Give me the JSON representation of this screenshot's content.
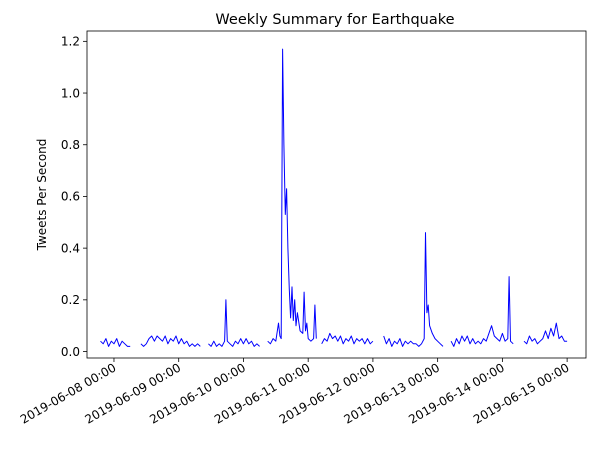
{
  "chart_data": {
    "type": "line",
    "title": "Weekly Summary for Earthquake",
    "xlabel": "",
    "ylabel": "Tweets Per Second",
    "ylim": [
      -0.025,
      1.24
    ],
    "xlim": [
      "2019-06-07 14:00",
      "2019-06-15 07:00"
    ],
    "grid": false,
    "legend": "none",
    "line_color": "#0000ff",
    "yticks": [
      0.0,
      0.2,
      0.4,
      0.6,
      0.8,
      1.0,
      1.2
    ],
    "ytick_labels": [
      "0.0",
      "0.2",
      "0.4",
      "0.6",
      "0.8",
      "1.0",
      "1.2"
    ],
    "xticks": [
      "2019-06-08 00:00",
      "2019-06-09 00:00",
      "2019-06-10 00:00",
      "2019-06-11 00:00",
      "2019-06-12 00:00",
      "2019-06-13 00:00",
      "2019-06-14 00:00",
      "2019-06-15 00:00"
    ],
    "xtick_labels": [
      "2019-06-08 00:00",
      "2019-06-09 00:00",
      "2019-06-10 00:00",
      "2019-06-11 00:00",
      "2019-06-12 00:00",
      "2019-06-13 00:00",
      "2019-06-14 00:00",
      "2019-06-15 00:00"
    ],
    "series": [
      {
        "segments": [
          [
            [
              "2019-06-07 19:00",
              0.04
            ],
            [
              "2019-06-07 20:00",
              0.03
            ],
            [
              "2019-06-07 21:00",
              0.05
            ],
            [
              "2019-06-07 22:00",
              0.02
            ],
            [
              "2019-06-07 23:00",
              0.04
            ],
            [
              "2019-06-08 00:00",
              0.03
            ],
            [
              "2019-06-08 01:00",
              0.05
            ],
            [
              "2019-06-08 02:00",
              0.02
            ],
            [
              "2019-06-08 03:00",
              0.04
            ],
            [
              "2019-06-08 04:00",
              0.03
            ],
            [
              "2019-06-08 05:00",
              0.02
            ],
            [
              "2019-06-08 06:00",
              0.02
            ]
          ],
          [
            [
              "2019-06-08 10:00",
              0.03
            ],
            [
              "2019-06-08 11:00",
              0.02
            ],
            [
              "2019-06-08 12:00",
              0.03
            ],
            [
              "2019-06-08 13:00",
              0.05
            ],
            [
              "2019-06-08 14:00",
              0.06
            ],
            [
              "2019-06-08 15:00",
              0.04
            ],
            [
              "2019-06-08 16:00",
              0.06
            ],
            [
              "2019-06-08 17:00",
              0.05
            ],
            [
              "2019-06-08 18:00",
              0.04
            ],
            [
              "2019-06-08 19:00",
              0.06
            ],
            [
              "2019-06-08 20:00",
              0.03
            ],
            [
              "2019-06-08 21:00",
              0.05
            ],
            [
              "2019-06-08 22:00",
              0.04
            ],
            [
              "2019-06-08 23:00",
              0.06
            ],
            [
              "2019-06-09 00:00",
              0.03
            ],
            [
              "2019-06-09 01:00",
              0.05
            ],
            [
              "2019-06-09 02:00",
              0.03
            ],
            [
              "2019-06-09 03:00",
              0.04
            ],
            [
              "2019-06-09 04:00",
              0.02
            ],
            [
              "2019-06-09 05:00",
              0.03
            ],
            [
              "2019-06-09 06:00",
              0.02
            ],
            [
              "2019-06-09 07:00",
              0.03
            ],
            [
              "2019-06-09 08:00",
              0.02
            ]
          ],
          [
            [
              "2019-06-09 11:00",
              0.03
            ],
            [
              "2019-06-09 12:00",
              0.02
            ],
            [
              "2019-06-09 13:00",
              0.04
            ],
            [
              "2019-06-09 14:00",
              0.02
            ],
            [
              "2019-06-09 15:00",
              0.03
            ],
            [
              "2019-06-09 16:00",
              0.02
            ],
            [
              "2019-06-09 17:00",
              0.04
            ],
            [
              "2019-06-09 17:30",
              0.2
            ],
            [
              "2019-06-09 18:00",
              0.04
            ],
            [
              "2019-06-09 19:00",
              0.03
            ],
            [
              "2019-06-09 20:00",
              0.02
            ],
            [
              "2019-06-09 21:00",
              0.04
            ],
            [
              "2019-06-09 22:00",
              0.03
            ],
            [
              "2019-06-09 23:00",
              0.05
            ],
            [
              "2019-06-10 00:00",
              0.03
            ],
            [
              "2019-06-10 01:00",
              0.05
            ],
            [
              "2019-06-10 02:00",
              0.03
            ],
            [
              "2019-06-10 03:00",
              0.04
            ],
            [
              "2019-06-10 04:00",
              0.02
            ],
            [
              "2019-06-10 05:00",
              0.03
            ],
            [
              "2019-06-10 06:00",
              0.02
            ]
          ],
          [
            [
              "2019-06-10 09:00",
              0.04
            ],
            [
              "2019-06-10 10:00",
              0.03
            ],
            [
              "2019-06-10 11:00",
              0.05
            ],
            [
              "2019-06-10 12:00",
              0.04
            ],
            [
              "2019-06-10 13:00",
              0.11
            ],
            [
              "2019-06-10 13:30",
              0.06
            ],
            [
              "2019-06-10 14:00",
              0.05
            ],
            [
              "2019-06-10 14:30",
              1.17
            ],
            [
              "2019-06-10 15:00",
              0.8
            ],
            [
              "2019-06-10 15:30",
              0.53
            ],
            [
              "2019-06-10 16:00",
              0.63
            ],
            [
              "2019-06-10 16:30",
              0.4
            ],
            [
              "2019-06-10 17:00",
              0.24
            ],
            [
              "2019-06-10 17:30",
              0.13
            ],
            [
              "2019-06-10 18:00",
              0.25
            ],
            [
              "2019-06-10 18:30",
              0.12
            ],
            [
              "2019-06-10 19:00",
              0.2
            ],
            [
              "2019-06-10 19:30",
              0.1
            ],
            [
              "2019-06-10 20:00",
              0.15
            ],
            [
              "2019-06-10 21:00",
              0.08
            ],
            [
              "2019-06-10 22:00",
              0.07
            ],
            [
              "2019-06-10 22:30",
              0.23
            ],
            [
              "2019-06-10 23:00",
              0.08
            ],
            [
              "2019-06-10 23:30",
              0.11
            ],
            [
              "2019-06-11 00:00",
              0.05
            ],
            [
              "2019-06-11 01:00",
              0.04
            ],
            [
              "2019-06-11 02:00",
              0.05
            ],
            [
              "2019-06-11 02:30",
              0.18
            ],
            [
              "2019-06-11 03:00",
              0.05
            ]
          ],
          [
            [
              "2019-06-11 05:00",
              0.03
            ],
            [
              "2019-06-11 06:00",
              0.05
            ],
            [
              "2019-06-11 07:00",
              0.04
            ],
            [
              "2019-06-11 08:00",
              0.07
            ],
            [
              "2019-06-11 09:00",
              0.05
            ],
            [
              "2019-06-11 10:00",
              0.06
            ],
            [
              "2019-06-11 11:00",
              0.04
            ],
            [
              "2019-06-11 12:00",
              0.06
            ],
            [
              "2019-06-11 13:00",
              0.03
            ],
            [
              "2019-06-11 14:00",
              0.05
            ],
            [
              "2019-06-11 15:00",
              0.04
            ],
            [
              "2019-06-11 16:00",
              0.06
            ],
            [
              "2019-06-11 17:00",
              0.03
            ],
            [
              "2019-06-11 18:00",
              0.05
            ],
            [
              "2019-06-11 19:00",
              0.04
            ],
            [
              "2019-06-11 20:00",
              0.05
            ],
            [
              "2019-06-11 21:00",
              0.03
            ],
            [
              "2019-06-11 22:00",
              0.05
            ],
            [
              "2019-06-11 23:00",
              0.03
            ],
            [
              "2019-06-12 00:00",
              0.04
            ]
          ],
          [
            [
              "2019-06-12 04:00",
              0.06
            ],
            [
              "2019-06-12 05:00",
              0.03
            ],
            [
              "2019-06-12 06:00",
              0.05
            ],
            [
              "2019-06-12 07:00",
              0.02
            ],
            [
              "2019-06-12 08:00",
              0.04
            ],
            [
              "2019-06-12 09:00",
              0.03
            ],
            [
              "2019-06-12 10:00",
              0.05
            ],
            [
              "2019-06-12 11:00",
              0.02
            ],
            [
              "2019-06-12 12:00",
              0.04
            ],
            [
              "2019-06-12 13:00",
              0.03
            ],
            [
              "2019-06-12 14:00",
              0.04
            ],
            [
              "2019-06-12 15:00",
              0.03
            ],
            [
              "2019-06-12 16:00",
              0.03
            ],
            [
              "2019-06-12 17:00",
              0.02
            ],
            [
              "2019-06-12 18:00",
              0.03
            ],
            [
              "2019-06-12 19:00",
              0.05
            ],
            [
              "2019-06-12 19:30",
              0.46
            ],
            [
              "2019-06-12 20:00",
              0.15
            ],
            [
              "2019-06-12 20:30",
              0.18
            ],
            [
              "2019-06-12 21:00",
              0.1
            ],
            [
              "2019-06-12 22:00",
              0.07
            ],
            [
              "2019-06-12 23:00",
              0.05
            ],
            [
              "2019-06-13 00:00",
              0.04
            ],
            [
              "2019-06-13 01:00",
              0.03
            ],
            [
              "2019-06-13 02:00",
              0.02
            ]
          ],
          [
            [
              "2019-06-13 05:00",
              0.04
            ],
            [
              "2019-06-13 06:00",
              0.02
            ],
            [
              "2019-06-13 07:00",
              0.05
            ],
            [
              "2019-06-13 08:00",
              0.03
            ],
            [
              "2019-06-13 09:00",
              0.06
            ],
            [
              "2019-06-13 10:00",
              0.04
            ],
            [
              "2019-06-13 11:00",
              0.06
            ],
            [
              "2019-06-13 12:00",
              0.03
            ],
            [
              "2019-06-13 13:00",
              0.05
            ],
            [
              "2019-06-13 14:00",
              0.03
            ],
            [
              "2019-06-13 15:00",
              0.04
            ],
            [
              "2019-06-13 16:00",
              0.03
            ],
            [
              "2019-06-13 17:00",
              0.05
            ],
            [
              "2019-06-13 18:00",
              0.04
            ],
            [
              "2019-06-13 19:00",
              0.07
            ],
            [
              "2019-06-13 20:00",
              0.1
            ],
            [
              "2019-06-13 21:00",
              0.06
            ],
            [
              "2019-06-13 22:00",
              0.05
            ],
            [
              "2019-06-13 23:00",
              0.04
            ],
            [
              "2019-06-14 00:00",
              0.07
            ],
            [
              "2019-06-14 01:00",
              0.04
            ],
            [
              "2019-06-14 02:00",
              0.05
            ],
            [
              "2019-06-14 02:30",
              0.29
            ],
            [
              "2019-06-14 03:00",
              0.04
            ],
            [
              "2019-06-14 04:00",
              0.03
            ]
          ],
          [
            [
              "2019-06-14 08:00",
              0.04
            ],
            [
              "2019-06-14 09:00",
              0.03
            ],
            [
              "2019-06-14 10:00",
              0.06
            ],
            [
              "2019-06-14 11:00",
              0.04
            ],
            [
              "2019-06-14 12:00",
              0.05
            ],
            [
              "2019-06-14 13:00",
              0.03
            ],
            [
              "2019-06-14 14:00",
              0.04
            ],
            [
              "2019-06-14 15:00",
              0.05
            ],
            [
              "2019-06-14 16:00",
              0.08
            ],
            [
              "2019-06-14 17:00",
              0.05
            ],
            [
              "2019-06-14 18:00",
              0.09
            ],
            [
              "2019-06-14 19:00",
              0.06
            ],
            [
              "2019-06-14 20:00",
              0.11
            ],
            [
              "2019-06-14 21:00",
              0.05
            ],
            [
              "2019-06-14 22:00",
              0.06
            ],
            [
              "2019-06-14 23:00",
              0.04
            ],
            [
              "2019-06-15 00:00",
              0.04
            ]
          ]
        ]
      }
    ]
  }
}
